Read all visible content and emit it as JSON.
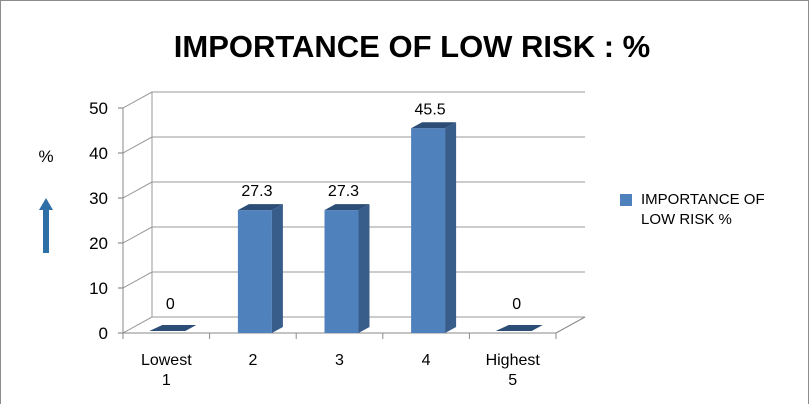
{
  "chart_data": {
    "type": "bar",
    "title": "IMPORTANCE OF LOW RISK : %",
    "ylabel": "%",
    "categories": [
      [
        "Lowest",
        "1"
      ],
      [
        "2"
      ],
      [
        "3"
      ],
      [
        "4"
      ],
      [
        "Highest",
        "5"
      ]
    ],
    "series": [
      {
        "name": "IMPORTANCE OF LOW RISK %",
        "values": [
          0,
          27.3,
          27.3,
          45.5,
          0
        ]
      }
    ],
    "data_labels": [
      "0",
      "27.3",
      "27.3",
      "45.5",
      "0"
    ],
    "ylim": [
      0,
      50
    ],
    "yticks": [
      0,
      10,
      20,
      30,
      40,
      50
    ],
    "legend_position": "right",
    "grid": true,
    "colors": {
      "bar_front": "#4f81bd",
      "bar_side": "#385d8a",
      "bar_top": "#2c4d75",
      "arrow": "#2e6fa8"
    }
  }
}
